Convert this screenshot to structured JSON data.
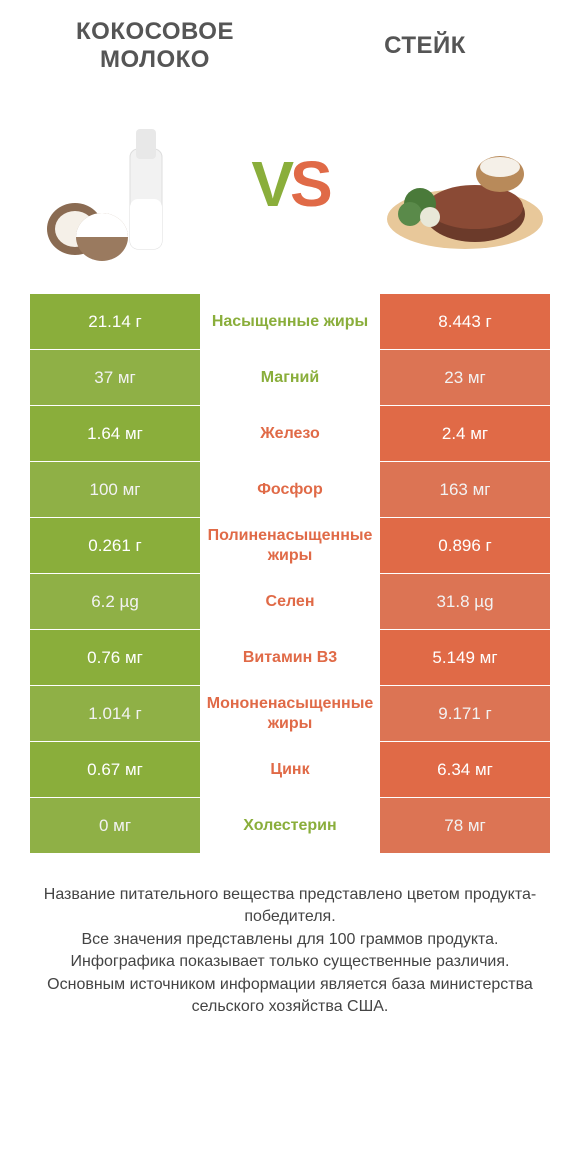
{
  "colors": {
    "green": "#8aae3b",
    "green_alt": "#97b94a",
    "orange": "#e06a47",
    "orange_alt": "#e87a58",
    "text_mid_green": "#8aae3b",
    "text_mid_orange": "#e06a47",
    "title": "#555555",
    "footer": "#444444",
    "bg": "#ffffff"
  },
  "header": {
    "left_title": "КОКОСОВОЕ МОЛОКО",
    "right_title": "СТЕЙК",
    "vs_v": "V",
    "vs_s": "S"
  },
  "rows": [
    {
      "left": "21.14 г",
      "mid": "Насыщенные жиры",
      "right": "8.443 г",
      "winner": "left"
    },
    {
      "left": "37 мг",
      "mid": "Магний",
      "right": "23 мг",
      "winner": "left"
    },
    {
      "left": "1.64 мг",
      "mid": "Железо",
      "right": "2.4 мг",
      "winner": "right"
    },
    {
      "left": "100 мг",
      "mid": "Фосфор",
      "right": "163 мг",
      "winner": "right"
    },
    {
      "left": "0.261 г",
      "mid": "Полиненасыщенные жиры",
      "right": "0.896 г",
      "winner": "right"
    },
    {
      "left": "6.2 µg",
      "mid": "Селен",
      "right": "31.8 µg",
      "winner": "right"
    },
    {
      "left": "0.76 мг",
      "mid": "Витамин B3",
      "right": "5.149 мг",
      "winner": "right"
    },
    {
      "left": "1.014 г",
      "mid": "Мононенасыщенные жиры",
      "right": "9.171 г",
      "winner": "right"
    },
    {
      "left": "0.67 мг",
      "mid": "Цинк",
      "right": "6.34 мг",
      "winner": "right"
    },
    {
      "left": "0 мг",
      "mid": "Холестерин",
      "right": "78 мг",
      "winner": "left"
    }
  ],
  "footer": {
    "line1": "Название питательного вещества представлено цветом продукта-победителя.",
    "line2": "Все значения представлены для 100 граммов продукта.",
    "line3": "Инфографика показывает только существенные различия.",
    "line4": "Основным источником информации является база министерства сельского хозяйства США."
  }
}
